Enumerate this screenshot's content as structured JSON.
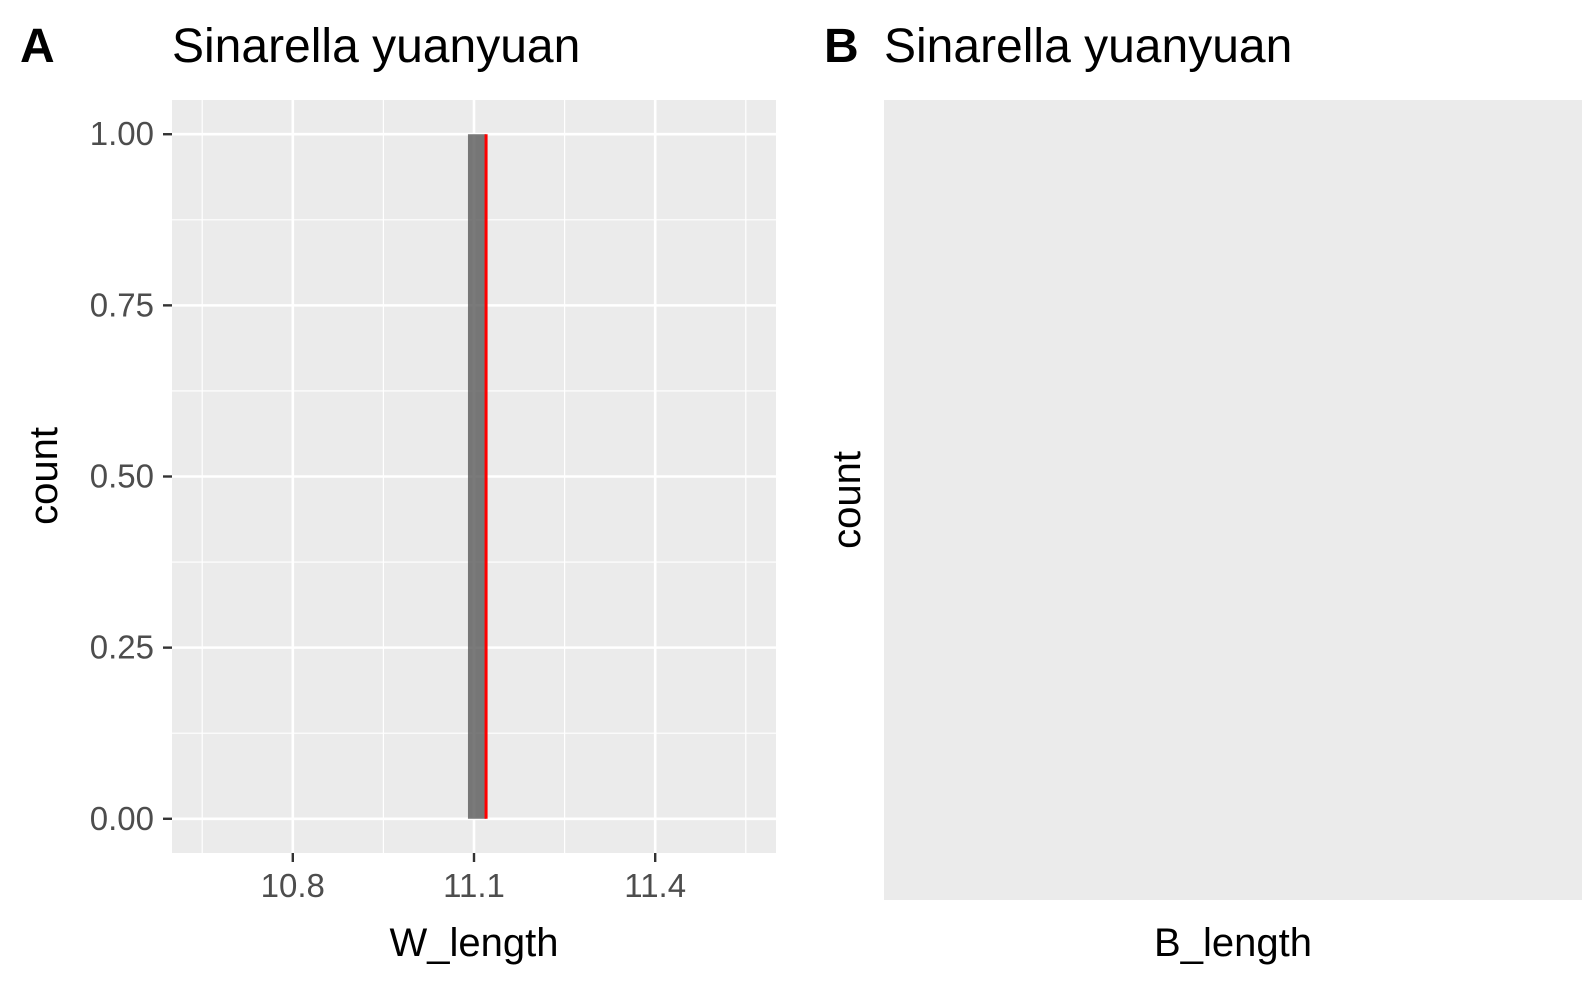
{
  "chart_data": [
    {
      "panel_tag": "A",
      "type": "bar",
      "title": "Sinarella yuanyuan",
      "xlabel": "W_length",
      "ylabel": "count",
      "xlim": [
        10.6,
        11.6
      ],
      "ylim": [
        -0.05,
        1.05
      ],
      "x_ticks": [
        10.8,
        11.1,
        11.4
      ],
      "x_tick_labels": [
        "10.8",
        "11.1",
        "11.4"
      ],
      "y_ticks": [
        0,
        0.25,
        0.5,
        0.75,
        1
      ],
      "y_tick_labels": [
        "0.00",
        "0.25",
        "0.50",
        "0.75",
        "1.00"
      ],
      "bins": [
        {
          "x_start": 11.09,
          "x_end": 11.12,
          "count": 1
        }
      ],
      "reference_line": {
        "x": 11.12,
        "color": "#ff0000"
      },
      "bar_color": "#595959",
      "panel_background": "#ebebeb",
      "grid": true
    },
    {
      "panel_tag": "B",
      "type": "bar",
      "title": "Sinarella yuanyuan",
      "xlabel": "B_length",
      "ylabel": "count",
      "bins": [],
      "panel_background": "#ebebeb",
      "grid": false
    }
  ]
}
